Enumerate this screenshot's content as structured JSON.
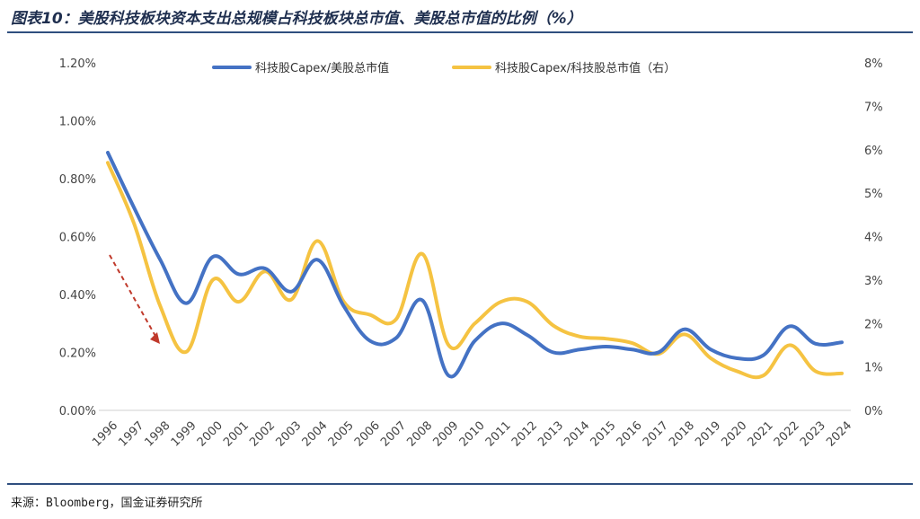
{
  "header": {
    "title": "图表10：美股科技板块资本支出总规模占科技板块总市值、美股总市值的比例（%）"
  },
  "footer": {
    "source": "来源：Bloomberg，国金证券研究所"
  },
  "chart_data": {
    "type": "line",
    "categories": [
      "1996",
      "1997",
      "1998",
      "1999",
      "2000",
      "2001",
      "2002",
      "2003",
      "2004",
      "2005",
      "2006",
      "2007",
      "2008",
      "2009",
      "2010",
      "2011",
      "2012",
      "2013",
      "2014",
      "2015",
      "2016",
      "2017",
      "2018",
      "2019",
      "2020",
      "2021",
      "2022",
      "2023",
      "2024"
    ],
    "y_left": {
      "ticks": [
        "0.00%",
        "0.20%",
        "0.40%",
        "0.60%",
        "0.80%",
        "1.00%",
        "1.20%"
      ],
      "ylim": [
        0,
        1.2
      ]
    },
    "y_right": {
      "ticks": [
        "0%",
        "1%",
        "2%",
        "3%",
        "4%",
        "5%",
        "6%",
        "7%",
        "8%"
      ],
      "ylim": [
        0,
        8
      ]
    },
    "series": [
      {
        "name": "科技股Capex/美股总市值",
        "axis": "left",
        "color": "#4472c4",
        "values": [
          0.89,
          0.7,
          0.52,
          0.37,
          0.53,
          0.47,
          0.49,
          0.41,
          0.52,
          0.36,
          0.24,
          0.25,
          0.38,
          0.12,
          0.24,
          0.3,
          0.26,
          0.2,
          0.21,
          0.22,
          0.21,
          0.2,
          0.28,
          0.21,
          0.18,
          0.19,
          0.29,
          0.23,
          0.235
        ]
      },
      {
        "name": "科技股Capex/科技股总市值（右）",
        "axis": "right",
        "color": "#f5c342",
        "values": [
          5.7,
          4.3,
          2.4,
          1.35,
          3.0,
          2.5,
          3.2,
          2.55,
          3.9,
          2.5,
          2.2,
          2.1,
          3.6,
          1.5,
          2.0,
          2.5,
          2.5,
          1.95,
          1.7,
          1.65,
          1.55,
          1.3,
          1.75,
          1.2,
          0.9,
          0.8,
          1.5,
          0.9,
          0.85
        ]
      }
    ],
    "annotation": {
      "type": "arrow",
      "color": "#c0392b",
      "style": "dashed"
    },
    "legend": "top-center",
    "grid": false
  }
}
